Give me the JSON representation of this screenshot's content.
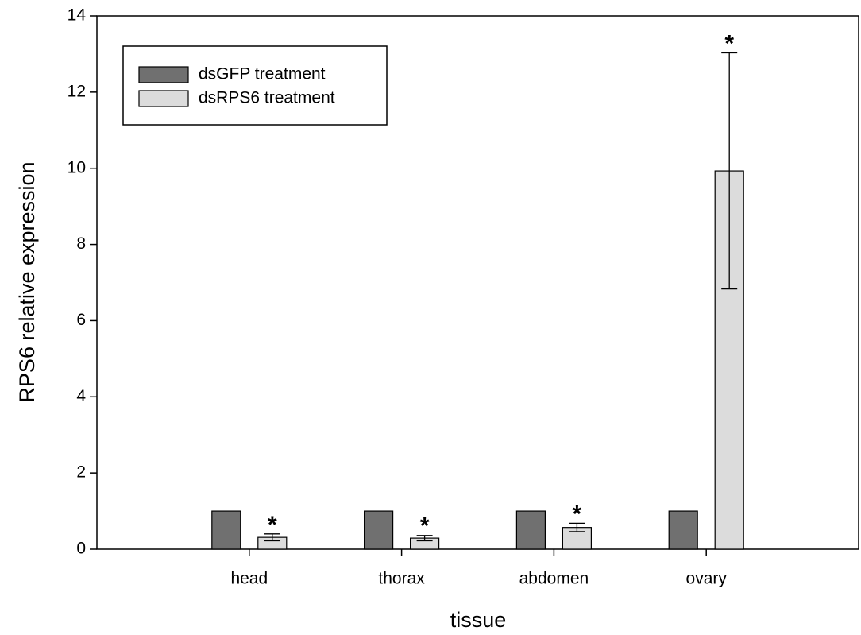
{
  "chart_data": {
    "type": "bar",
    "xlabel": "tissue",
    "ylabel": "RPS6 relative expression",
    "categories": [
      "head",
      "thorax",
      "abdomen",
      "ovary"
    ],
    "series": [
      {
        "name": "dsGFP treatment",
        "color": "#707070",
        "values": [
          1,
          1,
          1,
          1
        ]
      },
      {
        "name": "dsRPS6 treatment",
        "color": "#dcdcdc",
        "values": [
          0.31,
          0.29,
          0.57,
          9.93
        ],
        "errors": [
          0.09,
          0.07,
          0.11,
          3.1
        ]
      }
    ],
    "significance": [
      "*",
      "*",
      "*",
      "*"
    ],
    "ylim": [
      0,
      14
    ],
    "yticks": [
      0,
      2,
      4,
      6,
      8,
      10,
      12,
      14
    ],
    "legend": "upper left",
    "grid": false
  }
}
